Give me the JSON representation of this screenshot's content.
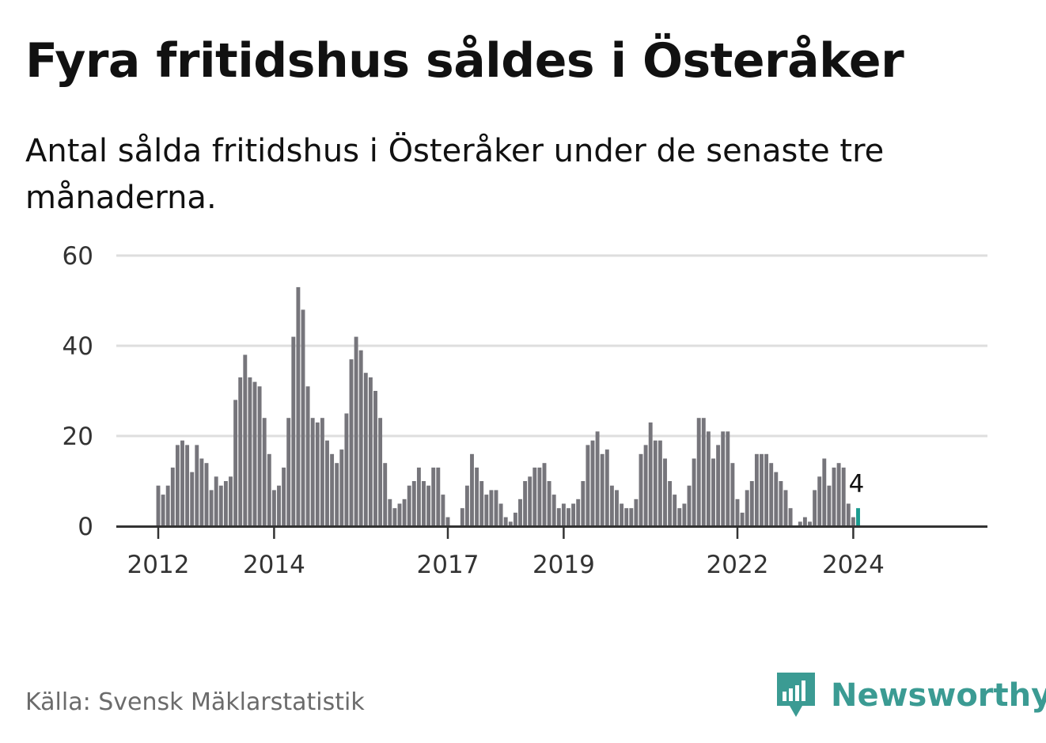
{
  "title": "Fyra fritidshus såldes i Österåker",
  "subtitle": "Antal sålda fritidshus i Österåker under de senaste tre månaderna.",
  "source": "Källa: Svensk Mäklarstatistik",
  "brand": {
    "name": "Newsworthy",
    "icon": "newsworthy-logo-icon"
  },
  "colors": {
    "bar": "#76757b",
    "highlight": "#1a9b8f",
    "grid": "#dedede",
    "axis": "#333333",
    "brand": "#3b9b93"
  },
  "chart_data": {
    "type": "bar",
    "title": "Fyra fritidshus såldes i Österåker",
    "xlabel": "",
    "ylabel": "",
    "ylim": [
      0,
      60
    ],
    "yticks": [
      0,
      20,
      40,
      60
    ],
    "grid": true,
    "start": "2012-01",
    "frequency": "monthly",
    "xticks": [
      {
        "label": "2012",
        "index": 0
      },
      {
        "label": "2014",
        "index": 24
      },
      {
        "label": "2017",
        "index": 60
      },
      {
        "label": "2019",
        "index": 84
      },
      {
        "label": "2022",
        "index": 120
      },
      {
        "label": "2024",
        "index": 144
      }
    ],
    "series": [
      {
        "name": "Antal sålda fritidshus",
        "values": [
          9,
          7,
          9,
          13,
          18,
          19,
          18,
          12,
          18,
          15,
          14,
          8,
          11,
          9,
          10,
          11,
          28,
          33,
          38,
          33,
          32,
          31,
          24,
          16,
          8,
          9,
          13,
          24,
          42,
          53,
          48,
          31,
          24,
          23,
          24,
          19,
          16,
          14,
          17,
          25,
          37,
          42,
          39,
          34,
          33,
          30,
          24,
          14,
          6,
          4,
          5,
          6,
          9,
          10,
          13,
          10,
          9,
          13,
          13,
          7,
          2,
          0,
          0,
          4,
          9,
          16,
          13,
          10,
          7,
          8,
          8,
          5,
          2,
          1,
          3,
          6,
          10,
          11,
          13,
          13,
          14,
          10,
          7,
          4,
          5,
          4,
          5,
          6,
          10,
          18,
          19,
          21,
          16,
          17,
          9,
          8,
          5,
          4,
          4,
          6,
          16,
          18,
          23,
          19,
          19,
          15,
          10,
          7,
          4,
          5,
          9,
          15,
          24,
          24,
          21,
          15,
          18,
          21,
          21,
          14,
          6,
          3,
          8,
          10,
          16,
          16,
          16,
          14,
          12,
          10,
          8,
          4,
          0,
          1,
          2,
          1,
          8,
          11,
          15,
          9,
          13,
          14,
          13,
          5,
          2,
          4
        ]
      }
    ],
    "highlight": {
      "index": 145,
      "label": "4",
      "value": 4
    }
  }
}
